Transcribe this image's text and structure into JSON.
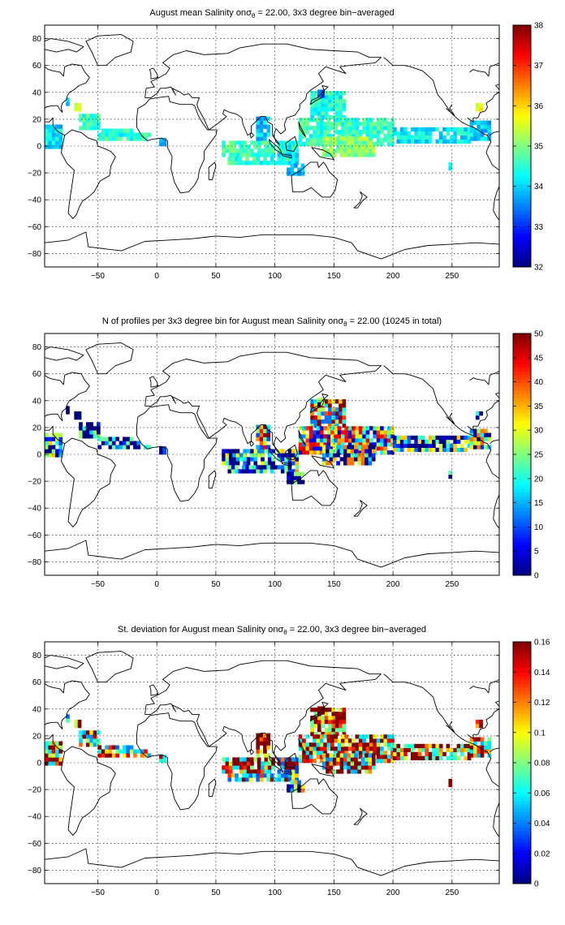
{
  "chart_data": [
    {
      "type": "heatmap",
      "title": "August mean Salinity onσθ = 22.00, 3x3 degree bin−averaged",
      "title_parts": {
        "a": "August mean Salinity on",
        "sym": "σ",
        "sub": "θ",
        "b": " = 22.00, 3x3 degree bin−averaged"
      },
      "xlabel": "",
      "ylabel": "",
      "xlim": [
        -95,
        290
      ],
      "ylim": [
        -90,
        90
      ],
      "xticks": [
        -50,
        0,
        50,
        100,
        150,
        200,
        250
      ],
      "yticks": [
        -80,
        -60,
        -40,
        -20,
        0,
        20,
        40,
        60,
        80
      ],
      "grid": true,
      "colorbar": {
        "min": 32,
        "max": 38,
        "ticks": [
          32,
          33,
          34,
          35,
          36,
          37,
          38
        ],
        "colormap": "jet",
        "location": "right"
      },
      "cell_size_deg": 3,
      "regions": [
        {
          "lon": [
            -95,
            -82
          ],
          "lat": [
            -2,
            16
          ],
          "value": 34.1
        },
        {
          "lon": [
            -70,
            -64
          ],
          "lat": [
            26,
            30
          ],
          "value": 35.8
        },
        {
          "lon": [
            -77,
            -74
          ],
          "lat": [
            30,
            34
          ],
          "value": 33.8
        },
        {
          "lon": [
            -66,
            -50
          ],
          "lat": [
            12,
            22
          ],
          "value": 34.6
        },
        {
          "lon": [
            -50,
            -20
          ],
          "lat": [
            4,
            12
          ],
          "value": 34.5
        },
        {
          "lon": [
            -20,
            -5
          ],
          "lat": [
            4,
            8
          ],
          "value": 34.6
        },
        {
          "lon": [
            2,
            8
          ],
          "lat": [
            0,
            4
          ],
          "value": 33.8
        },
        {
          "lon": [
            55,
            100
          ],
          "lat": [
            -8,
            4
          ],
          "value": 34.6
        },
        {
          "lon": [
            60,
            102
          ],
          "lat": [
            -14,
            -8
          ],
          "value": 34.5
        },
        {
          "lon": [
            84,
            96
          ],
          "lat": [
            4,
            22
          ],
          "value": 34.0
        },
        {
          "lon": [
            102,
            120
          ],
          "lat": [
            -14,
            4
          ],
          "value": 34.3
        },
        {
          "lon": [
            110,
            125
          ],
          "lat": [
            -22,
            -14
          ],
          "value": 34.0
        },
        {
          "lon": [
            130,
            160
          ],
          "lat": [
            20,
            40
          ],
          "value": 34.4
        },
        {
          "lon": [
            136,
            142
          ],
          "lat": [
            36,
            42
          ],
          "value": 33.3
        },
        {
          "lon": [
            120,
            200
          ],
          "lat": [
            0,
            20
          ],
          "value": 34.6
        },
        {
          "lon": [
            140,
            185
          ],
          "lat": [
            -8,
            6
          ],
          "value": 35.1
        },
        {
          "lon": [
            200,
            265
          ],
          "lat": [
            2,
            14
          ],
          "value": 34.2
        },
        {
          "lon": [
            265,
            282
          ],
          "lat": [
            4,
            18
          ],
          "value": 34.0
        },
        {
          "lon": [
            270,
            276
          ],
          "lat": [
            26,
            30
          ],
          "value": 35.8
        },
        {
          "lon": [
            247,
            250
          ],
          "lat": [
            -18,
            -14
          ],
          "value": 34.0
        }
      ]
    },
    {
      "type": "heatmap",
      "title": "N of profiles per 3x3 degree bin for August mean Salinity onσθ = 22.00 (10245 in total)",
      "title_parts": {
        "a": "N of profiles per 3x3 degree bin for August mean Salinity on",
        "sym": "σ",
        "sub": "θ",
        "b": " = 22.00 (10245 in total)"
      },
      "xlabel": "",
      "ylabel": "",
      "xlim": [
        -95,
        290
      ],
      "ylim": [
        -90,
        90
      ],
      "xticks": [
        -50,
        0,
        50,
        100,
        150,
        200,
        250
      ],
      "yticks": [
        -80,
        -60,
        -40,
        -20,
        0,
        20,
        40,
        60,
        80
      ],
      "grid": true,
      "colorbar": {
        "min": 0,
        "max": 50,
        "ticks": [
          0,
          5,
          10,
          15,
          20,
          25,
          30,
          35,
          40,
          45,
          50
        ],
        "colormap": "jet",
        "location": "right"
      },
      "cell_size_deg": 3,
      "regions": [
        {
          "lon": [
            -95,
            -82
          ],
          "lat": [
            -2,
            16
          ],
          "value": 14
        },
        {
          "lon": [
            -70,
            -64
          ],
          "lat": [
            26,
            30
          ],
          "value": 4
        },
        {
          "lon": [
            -77,
            -74
          ],
          "lat": [
            30,
            34
          ],
          "value": 6
        },
        {
          "lon": [
            -66,
            -50
          ],
          "lat": [
            12,
            22
          ],
          "value": 6
        },
        {
          "lon": [
            -50,
            -20
          ],
          "lat": [
            4,
            12
          ],
          "value": 4
        },
        {
          "lon": [
            -20,
            -5
          ],
          "lat": [
            4,
            8
          ],
          "value": 3
        },
        {
          "lon": [
            2,
            8
          ],
          "lat": [
            0,
            4
          ],
          "value": 3
        },
        {
          "lon": [
            55,
            100
          ],
          "lat": [
            -8,
            4
          ],
          "value": 12
        },
        {
          "lon": [
            60,
            102
          ],
          "lat": [
            -14,
            -8
          ],
          "value": 6
        },
        {
          "lon": [
            84,
            96
          ],
          "lat": [
            4,
            22
          ],
          "value": 30
        },
        {
          "lon": [
            102,
            120
          ],
          "lat": [
            -14,
            4
          ],
          "value": 14
        },
        {
          "lon": [
            110,
            125
          ],
          "lat": [
            -22,
            -14
          ],
          "value": 6
        },
        {
          "lon": [
            130,
            160
          ],
          "lat": [
            20,
            40
          ],
          "value": 32
        },
        {
          "lon": [
            136,
            142
          ],
          "lat": [
            36,
            42
          ],
          "value": 8
        },
        {
          "lon": [
            120,
            200
          ],
          "lat": [
            0,
            20
          ],
          "value": 24
        },
        {
          "lon": [
            140,
            185
          ],
          "lat": [
            -8,
            6
          ],
          "value": 18
        },
        {
          "lon": [
            200,
            265
          ],
          "lat": [
            2,
            14
          ],
          "value": 14
        },
        {
          "lon": [
            265,
            282
          ],
          "lat": [
            4,
            18
          ],
          "value": 18
        },
        {
          "lon": [
            270,
            276
          ],
          "lat": [
            26,
            30
          ],
          "value": 5
        },
        {
          "lon": [
            247,
            250
          ],
          "lat": [
            -18,
            -14
          ],
          "value": 3
        }
      ]
    },
    {
      "type": "heatmap",
      "title": "St. deviation for August mean Salinity onσθ = 22.00, 3x3 degree bin−averaged",
      "title_parts": {
        "a": "St. deviation for August mean Salinity on",
        "sym": "σ",
        "sub": "θ",
        "b": " = 22.00, 3x3 degree bin−averaged"
      },
      "xlabel": "",
      "ylabel": "",
      "xlim": [
        -95,
        290
      ],
      "ylim": [
        -90,
        90
      ],
      "xticks": [
        -50,
        0,
        50,
        100,
        150,
        200,
        250
      ],
      "yticks": [
        -80,
        -60,
        -40,
        -20,
        0,
        20,
        40,
        60,
        80
      ],
      "grid": true,
      "colorbar": {
        "min": 0,
        "max": 0.16,
        "ticks": [
          0,
          0.02,
          0.04,
          0.06,
          0.08,
          0.1,
          0.12,
          0.14,
          0.16
        ],
        "colormap": "jet",
        "location": "right"
      },
      "cell_size_deg": 3,
      "regions": [
        {
          "lon": [
            -95,
            -82
          ],
          "lat": [
            -2,
            16
          ],
          "value": 0.12
        },
        {
          "lon": [
            -70,
            -64
          ],
          "lat": [
            26,
            30
          ],
          "value": 0.14
        },
        {
          "lon": [
            -77,
            -74
          ],
          "lat": [
            30,
            34
          ],
          "value": 0.1
        },
        {
          "lon": [
            -66,
            -50
          ],
          "lat": [
            12,
            22
          ],
          "value": 0.11
        },
        {
          "lon": [
            -50,
            -20
          ],
          "lat": [
            4,
            12
          ],
          "value": 0.1
        },
        {
          "lon": [
            -20,
            -5
          ],
          "lat": [
            4,
            8
          ],
          "value": 0.11
        },
        {
          "lon": [
            2,
            8
          ],
          "lat": [
            0,
            4
          ],
          "value": 0.13
        },
        {
          "lon": [
            55,
            100
          ],
          "lat": [
            -8,
            4
          ],
          "value": 0.12
        },
        {
          "lon": [
            60,
            102
          ],
          "lat": [
            -14,
            -8
          ],
          "value": 0.1
        },
        {
          "lon": [
            84,
            96
          ],
          "lat": [
            4,
            22
          ],
          "value": 0.13
        },
        {
          "lon": [
            102,
            120
          ],
          "lat": [
            -14,
            4
          ],
          "value": 0.1
        },
        {
          "lon": [
            110,
            125
          ],
          "lat": [
            -22,
            -14
          ],
          "value": 0.06
        },
        {
          "lon": [
            130,
            160
          ],
          "lat": [
            20,
            40
          ],
          "value": 0.14
        },
        {
          "lon": [
            136,
            142
          ],
          "lat": [
            36,
            42
          ],
          "value": 0.12
        },
        {
          "lon": [
            120,
            200
          ],
          "lat": [
            0,
            20
          ],
          "value": 0.12
        },
        {
          "lon": [
            140,
            185
          ],
          "lat": [
            -8,
            6
          ],
          "value": 0.11
        },
        {
          "lon": [
            200,
            265
          ],
          "lat": [
            2,
            14
          ],
          "value": 0.13
        },
        {
          "lon": [
            265,
            282
          ],
          "lat": [
            4,
            18
          ],
          "value": 0.12
        },
        {
          "lon": [
            270,
            276
          ],
          "lat": [
            26,
            30
          ],
          "value": 0.14
        },
        {
          "lon": [
            247,
            250
          ],
          "lat": [
            -18,
            -14
          ],
          "value": 0.1
        }
      ]
    }
  ]
}
